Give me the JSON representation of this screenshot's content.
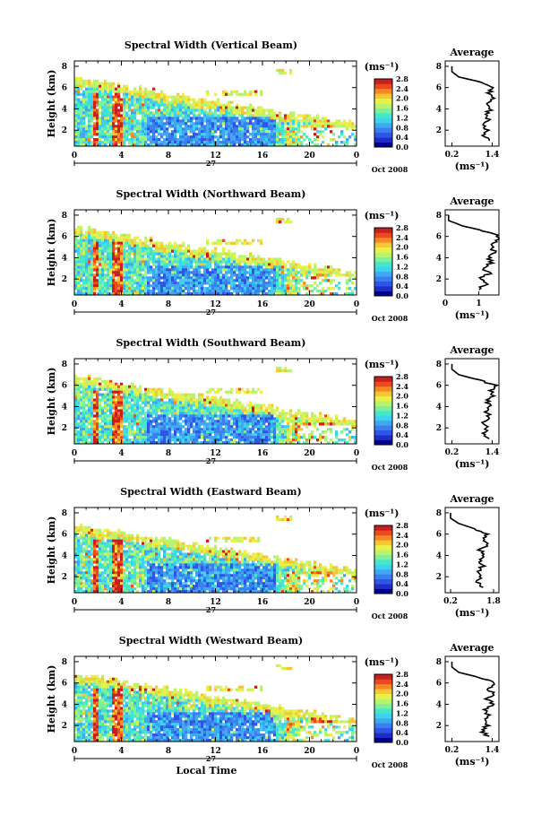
{
  "figure": {
    "common": {
      "ylabel": "Height (km)",
      "unit_label": "(ms⁻¹)",
      "avg_title": "Average",
      "avg_xlabel": "(ms⁻¹)",
      "date_label": "Oct 2008",
      "day_label": "27",
      "xlabel": "Local Time",
      "xticks": [
        "0",
        "4",
        "8",
        "12",
        "16",
        "20",
        "0"
      ],
      "yticks": [
        "2",
        "4",
        "6",
        "8"
      ],
      "avg_yticks": [
        "2",
        "4",
        "6",
        "8"
      ]
    },
    "colors": {
      "colormap": [
        "#00008b",
        "#1e2cc8",
        "#2f55e6",
        "#3a7ff0",
        "#40a8f2",
        "#3fd2ef",
        "#45e7c8",
        "#7ff09a",
        "#b9f36e",
        "#e9f04a",
        "#f8c534",
        "#f58a25",
        "#ea4a1d",
        "#c81e1e"
      ],
      "frame": "#000000"
    }
  },
  "chart_data": [
    {
      "type": "heatmap",
      "title": "Spectral Width (Vertical Beam)",
      "xlabel": "",
      "ylabel": "Height (km)",
      "x_range_hours": [
        0,
        24
      ],
      "ylim": [
        0.5,
        8.5
      ],
      "colorbar_ticks": [
        "2.8",
        "2.4",
        "2.0",
        "1.6",
        "1.2",
        "0.8",
        "0.4",
        "0.0"
      ],
      "colorbar_range": [
        0.0,
        2.8
      ],
      "average_profile": {
        "xticks": [
          "0.2",
          "1.4"
        ],
        "xlim": [
          0.0,
          1.6
        ],
        "heights": [
          1.0,
          1.5,
          2.0,
          2.5,
          3.0,
          3.5,
          4.0,
          4.5,
          5.0,
          5.5,
          6.0,
          6.5,
          7.0,
          7.5,
          8.0
        ],
        "values": [
          1.3,
          1.15,
          1.25,
          1.1,
          1.3,
          1.2,
          1.35,
          1.2,
          1.4,
          1.3,
          1.45,
          1.1,
          0.4,
          0.2,
          0.2
        ]
      }
    },
    {
      "type": "heatmap",
      "title": "Spectral Width (Northward Beam)",
      "xlabel": "",
      "ylabel": "Height (km)",
      "x_range_hours": [
        0,
        24
      ],
      "ylim": [
        0.5,
        8.5
      ],
      "colorbar_ticks": [
        "2.8",
        "2.4",
        "2.0",
        "1.6",
        "1.2",
        "0.8",
        "0.4",
        "0.0"
      ],
      "colorbar_range": [
        0.0,
        2.8
      ],
      "average_profile": {
        "xticks": [
          "0",
          "1"
        ],
        "xlim": [
          0.0,
          1.6
        ],
        "heights": [
          1.0,
          1.5,
          2.0,
          2.5,
          3.0,
          3.5,
          4.0,
          4.5,
          5.0,
          5.5,
          6.0,
          6.5,
          7.0,
          7.5,
          8.0
        ],
        "values": [
          1.0,
          1.2,
          1.05,
          1.3,
          1.15,
          1.35,
          1.3,
          1.45,
          1.4,
          1.5,
          1.6,
          1.2,
          0.5,
          0.1,
          0.1
        ]
      }
    },
    {
      "type": "heatmap",
      "title": "Spectral Width (Southward Beam)",
      "xlabel": "",
      "ylabel": "Height (km)",
      "x_range_hours": [
        0,
        24
      ],
      "ylim": [
        0.5,
        8.5
      ],
      "colorbar_ticks": [
        "2.8",
        "2.4",
        "2.0",
        "1.6",
        "1.2",
        "0.8",
        "0.4",
        "0.0"
      ],
      "colorbar_range": [
        0.0,
        2.8
      ],
      "average_profile": {
        "xticks": [
          "0.2",
          "1.4"
        ],
        "xlim": [
          0.0,
          1.6
        ],
        "heights": [
          1.0,
          1.5,
          2.0,
          2.5,
          3.0,
          3.5,
          4.0,
          4.5,
          5.0,
          5.5,
          6.0,
          6.5,
          7.0,
          7.5,
          8.0
        ],
        "values": [
          1.3,
          1.1,
          1.25,
          1.15,
          1.35,
          1.2,
          1.3,
          1.25,
          1.45,
          1.35,
          1.5,
          1.0,
          0.4,
          0.2,
          0.2
        ]
      }
    },
    {
      "type": "heatmap",
      "title": "Spectral Width (Eastward Beam)",
      "xlabel": "",
      "ylabel": "Height (km)",
      "x_range_hours": [
        0,
        24
      ],
      "ylim": [
        0.5,
        8.5
      ],
      "colorbar_ticks": [
        "2.8",
        "2.4",
        "2.0",
        "1.6",
        "1.2",
        "0.8",
        "0.4",
        "0.0"
      ],
      "colorbar_range": [
        0.0,
        2.8
      ],
      "average_profile": {
        "xticks": [
          "0.2",
          "1.8"
        ],
        "xlim": [
          0.0,
          2.0
        ],
        "heights": [
          1.0,
          1.5,
          2.0,
          2.5,
          3.0,
          3.5,
          4.0,
          4.5,
          5.0,
          5.5,
          6.0,
          6.5,
          7.0,
          7.5,
          8.0
        ],
        "values": [
          1.4,
          1.2,
          1.35,
          1.2,
          1.4,
          1.3,
          1.45,
          1.3,
          1.55,
          1.4,
          1.6,
          1.1,
          0.5,
          0.2,
          0.2
        ]
      }
    },
    {
      "type": "heatmap",
      "title": "Spectral Width (Westward Beam)",
      "xlabel": "Local Time",
      "ylabel": "Height (km)",
      "x_range_hours": [
        0,
        24
      ],
      "ylim": [
        0.5,
        8.5
      ],
      "colorbar_ticks": [
        "2.8",
        "2.4",
        "2.0",
        "1.6",
        "1.2",
        "0.8",
        "0.4",
        "0.0"
      ],
      "colorbar_range": [
        0.0,
        2.8
      ],
      "average_profile": {
        "xticks": [
          "0.2",
          "1.4"
        ],
        "xlim": [
          0.0,
          1.6
        ],
        "heights": [
          1.0,
          1.5,
          2.0,
          2.5,
          3.0,
          3.5,
          4.0,
          4.5,
          5.0,
          5.5,
          6.0,
          6.5,
          7.0,
          7.5,
          8.0
        ],
        "values": [
          1.3,
          1.1,
          1.25,
          1.15,
          1.3,
          1.2,
          1.4,
          1.25,
          1.45,
          1.3,
          1.5,
          1.05,
          0.4,
          0.2,
          0.2
        ]
      }
    }
  ]
}
